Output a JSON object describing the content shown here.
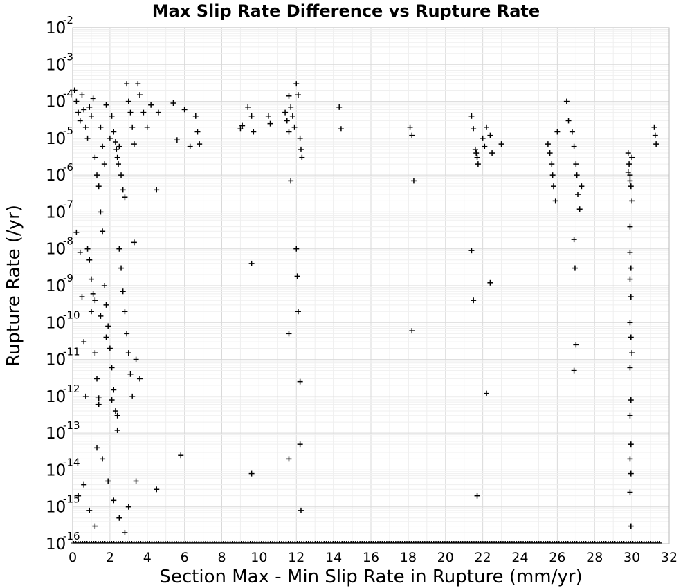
{
  "chart_data": {
    "type": "scatter",
    "title": "Max Slip Rate Difference vs Rupture Rate",
    "xlabel": "Section Max - Min Slip Rate in Rupture (mm/yr)",
    "ylabel": "Rupture Rate (/yr)",
    "xlim": [
      0,
      32
    ],
    "ylim": [
      1e-16,
      0.01
    ],
    "yscale": "log",
    "grid": true,
    "marker": "plus",
    "x_ticks": [
      "0",
      "2",
      "4",
      "6",
      "8",
      "10",
      "12",
      "14",
      "16",
      "18",
      "20",
      "22",
      "24",
      "26",
      "28",
      "30",
      "32"
    ],
    "y_ticks": [
      {
        "base": "10",
        "exp": "-2"
      },
      {
        "base": "10",
        "exp": "-3"
      },
      {
        "base": "10",
        "exp": "-4"
      },
      {
        "base": "10",
        "exp": "-5"
      },
      {
        "base": "10",
        "exp": "-6"
      },
      {
        "base": "10",
        "exp": "-7"
      },
      {
        "base": "10",
        "exp": "-8"
      },
      {
        "base": "10",
        "exp": "-9"
      },
      {
        "base": "10",
        "exp": "-10"
      },
      {
        "base": "10",
        "exp": "-11"
      },
      {
        "base": "10",
        "exp": "-12"
      },
      {
        "base": "10",
        "exp": "-13"
      },
      {
        "base": "10",
        "exp": "-14"
      },
      {
        "base": "10",
        "exp": "-15"
      },
      {
        "base": "10",
        "exp": "-16"
      }
    ],
    "points": [
      [
        0.1,
        0.0002
      ],
      [
        0.2,
        0.0001
      ],
      [
        0.3,
        5e-05
      ],
      [
        0.4,
        3e-05
      ],
      [
        0.5,
        0.00015
      ],
      [
        0.6,
        6e-05
      ],
      [
        0.7,
        2e-05
      ],
      [
        0.8,
        1e-05
      ],
      [
        0.9,
        7e-05
      ],
      [
        1.0,
        4e-05
      ],
      [
        1.1,
        0.00012
      ],
      [
        1.2,
        3e-06
      ],
      [
        1.3,
        1e-06
      ],
      [
        1.4,
        5e-07
      ],
      [
        1.5,
        2e-05
      ],
      [
        1.6,
        6e-06
      ],
      [
        1.7,
        2e-06
      ],
      [
        1.8,
        8e-05
      ],
      [
        2.0,
        1e-05
      ],
      [
        2.1,
        4e-05
      ],
      [
        2.2,
        1.5e-05
      ],
      [
        2.3,
        8e-06
      ],
      [
        2.35,
        5e-06
      ],
      [
        2.4,
        3e-06
      ],
      [
        2.45,
        2e-06
      ],
      [
        2.5,
        6e-06
      ],
      [
        2.6,
        1e-06
      ],
      [
        2.7,
        4e-07
      ],
      [
        2.8,
        2.5e-07
      ],
      [
        2.9,
        0.0003
      ],
      [
        3.0,
        0.0001
      ],
      [
        3.1,
        5e-05
      ],
      [
        3.2,
        2e-05
      ],
      [
        3.3,
        7e-06
      ],
      [
        3.5,
        0.0003
      ],
      [
        3.6,
        0.00015
      ],
      [
        3.8,
        5e-05
      ],
      [
        4.0,
        2e-05
      ],
      [
        4.2,
        8e-05
      ],
      [
        4.5,
        4e-07
      ],
      [
        4.6,
        5e-05
      ],
      [
        5.4,
        9e-05
      ],
      [
        5.6,
        9e-06
      ],
      [
        6.0,
        6e-05
      ],
      [
        6.3,
        6e-06
      ],
      [
        6.6,
        4e-05
      ],
      [
        6.7,
        1.5e-05
      ],
      [
        6.8,
        7e-06
      ],
      [
        9.0,
        1.8e-05
      ],
      [
        9.1,
        2.2e-05
      ],
      [
        9.4,
        7e-05
      ],
      [
        9.6,
        4e-05
      ],
      [
        9.7,
        1.5e-05
      ],
      [
        10.5,
        4e-05
      ],
      [
        10.6,
        2.5e-05
      ],
      [
        11.4,
        5e-05
      ],
      [
        11.5,
        3e-05
      ],
      [
        11.6,
        0.00014
      ],
      [
        11.7,
        7e-05
      ],
      [
        11.8,
        4e-05
      ],
      [
        11.9,
        2e-05
      ],
      [
        12.0,
        0.0003
      ],
      [
        12.1,
        0.00015
      ],
      [
        12.2,
        1e-05
      ],
      [
        12.25,
        5e-06
      ],
      [
        12.3,
        3e-06
      ],
      [
        11.6,
        1.5e-05
      ],
      [
        11.7,
        7e-07
      ],
      [
        14.3,
        7e-05
      ],
      [
        14.4,
        1.8e-05
      ],
      [
        18.1,
        2e-05
      ],
      [
        18.2,
        1.2e-05
      ],
      [
        18.3,
        7e-07
      ],
      [
        21.4,
        4e-05
      ],
      [
        21.5,
        1.8e-05
      ],
      [
        21.6,
        5e-06
      ],
      [
        21.65,
        4e-06
      ],
      [
        21.7,
        3e-06
      ],
      [
        21.75,
        2e-06
      ],
      [
        22.0,
        1e-05
      ],
      [
        22.1,
        6e-06
      ],
      [
        22.2,
        2e-05
      ],
      [
        22.4,
        1.2e-05
      ],
      [
        22.5,
        4e-06
      ],
      [
        23.0,
        7e-06
      ],
      [
        25.5,
        7e-06
      ],
      [
        25.6,
        4e-06
      ],
      [
        25.7,
        2e-06
      ],
      [
        25.75,
        1e-06
      ],
      [
        25.8,
        5e-07
      ],
      [
        25.9,
        2e-07
      ],
      [
        26.0,
        1.5e-05
      ],
      [
        26.5,
        0.0001
      ],
      [
        26.6,
        3e-05
      ],
      [
        26.8,
        1.5e-05
      ],
      [
        26.9,
        6e-06
      ],
      [
        27.0,
        2e-06
      ],
      [
        27.05,
        1e-06
      ],
      [
        27.1,
        3e-07
      ],
      [
        27.2,
        1.2e-07
      ],
      [
        27.3,
        5e-07
      ],
      [
        29.8,
        4e-06
      ],
      [
        29.85,
        2e-06
      ],
      [
        29.9,
        1e-06
      ],
      [
        29.95,
        5e-07
      ],
      [
        30.0,
        2e-07
      ],
      [
        29.9,
        7e-07
      ],
      [
        30.0,
        3e-06
      ],
      [
        29.8,
        1.2e-06
      ],
      [
        31.2,
        2e-05
      ],
      [
        31.3,
        7e-06
      ],
      [
        31.25,
        1.2e-05
      ],
      [
        0.2,
        2.8e-08
      ],
      [
        0.4,
        8e-09
      ],
      [
        0.5,
        5e-10
      ],
      [
        0.6,
        3e-11
      ],
      [
        0.7,
        1e-12
      ],
      [
        0.8,
        1e-08
      ],
      [
        0.9,
        5e-09
      ],
      [
        1.0,
        1.5e-09
      ],
      [
        1.1,
        6e-10
      ],
      [
        1.2,
        1.5e-11
      ],
      [
        1.3,
        3e-12
      ],
      [
        1.4,
        9e-13
      ],
      [
        1.5,
        1e-07
      ],
      [
        1.6,
        3e-08
      ],
      [
        1.7,
        1e-09
      ],
      [
        1.8,
        3e-10
      ],
      [
        1.9,
        8e-11
      ],
      [
        2.0,
        2e-11
      ],
      [
        2.1,
        6e-12
      ],
      [
        2.2,
        1.5e-12
      ],
      [
        2.3,
        4e-13
      ],
      [
        2.4,
        1.2e-13
      ],
      [
        2.5,
        1e-08
      ],
      [
        2.6,
        3e-09
      ],
      [
        2.7,
        7e-10
      ],
      [
        2.8,
        2e-10
      ],
      [
        2.9,
        5e-11
      ],
      [
        3.0,
        1.5e-11
      ],
      [
        3.1,
        4e-12
      ],
      [
        3.2,
        1e-12
      ],
      [
        3.3,
        1.5e-08
      ],
      [
        3.4,
        1e-11
      ],
      [
        3.6,
        3e-12
      ],
      [
        1.2,
        4e-10
      ],
      [
        1.5,
        1.5e-10
      ],
      [
        1.8,
        4e-11
      ],
      [
        2.1,
        8e-13
      ],
      [
        2.4,
        3e-13
      ],
      [
        1.0,
        2e-10
      ],
      [
        1.3,
        4e-14
      ],
      [
        1.6,
        2e-14
      ],
      [
        1.9,
        5e-15
      ],
      [
        2.2,
        1.5e-15
      ],
      [
        2.5,
        5e-16
      ],
      [
        0.3,
        2e-15
      ],
      [
        0.6,
        4e-15
      ],
      [
        0.9,
        8e-16
      ],
      [
        1.2,
        3e-16
      ],
      [
        2.8,
        2e-16
      ],
      [
        1.4,
        6e-13
      ],
      [
        3.0,
        1e-15
      ],
      [
        3.4,
        5e-15
      ],
      [
        4.5,
        3e-15
      ],
      [
        5.8,
        2.5e-14
      ],
      [
        9.6,
        4e-09
      ],
      [
        9.6,
        8e-15
      ],
      [
        11.6,
        5e-11
      ],
      [
        11.6,
        2e-14
      ],
      [
        12.0,
        1e-08
      ],
      [
        12.05,
        1.8e-09
      ],
      [
        12.1,
        2e-10
      ],
      [
        12.2,
        2.5e-12
      ],
      [
        12.2,
        5e-14
      ],
      [
        12.25,
        8e-16
      ],
      [
        18.2,
        6e-11
      ],
      [
        21.4,
        9e-09
      ],
      [
        21.5,
        4e-10
      ],
      [
        21.7,
        2e-15
      ],
      [
        22.2,
        1.2e-12
      ],
      [
        22.4,
        1.2e-09
      ],
      [
        26.9,
        1.8e-08
      ],
      [
        26.95,
        3e-09
      ],
      [
        27.0,
        2.5e-11
      ],
      [
        26.9,
        5e-12
      ],
      [
        29.9,
        4e-08
      ],
      [
        29.9,
        8e-09
      ],
      [
        29.95,
        3e-09
      ],
      [
        29.9,
        1.5e-09
      ],
      [
        29.95,
        5e-10
      ],
      [
        29.9,
        1e-10
      ],
      [
        29.95,
        4e-11
      ],
      [
        30.0,
        1.5e-11
      ],
      [
        29.9,
        6e-12
      ],
      [
        29.95,
        8e-13
      ],
      [
        29.9,
        3e-13
      ],
      [
        29.95,
        5e-14
      ],
      [
        29.9,
        2e-14
      ],
      [
        29.95,
        8e-15
      ],
      [
        29.9,
        2.5e-15
      ],
      [
        29.95,
        3e-16
      ]
    ]
  }
}
